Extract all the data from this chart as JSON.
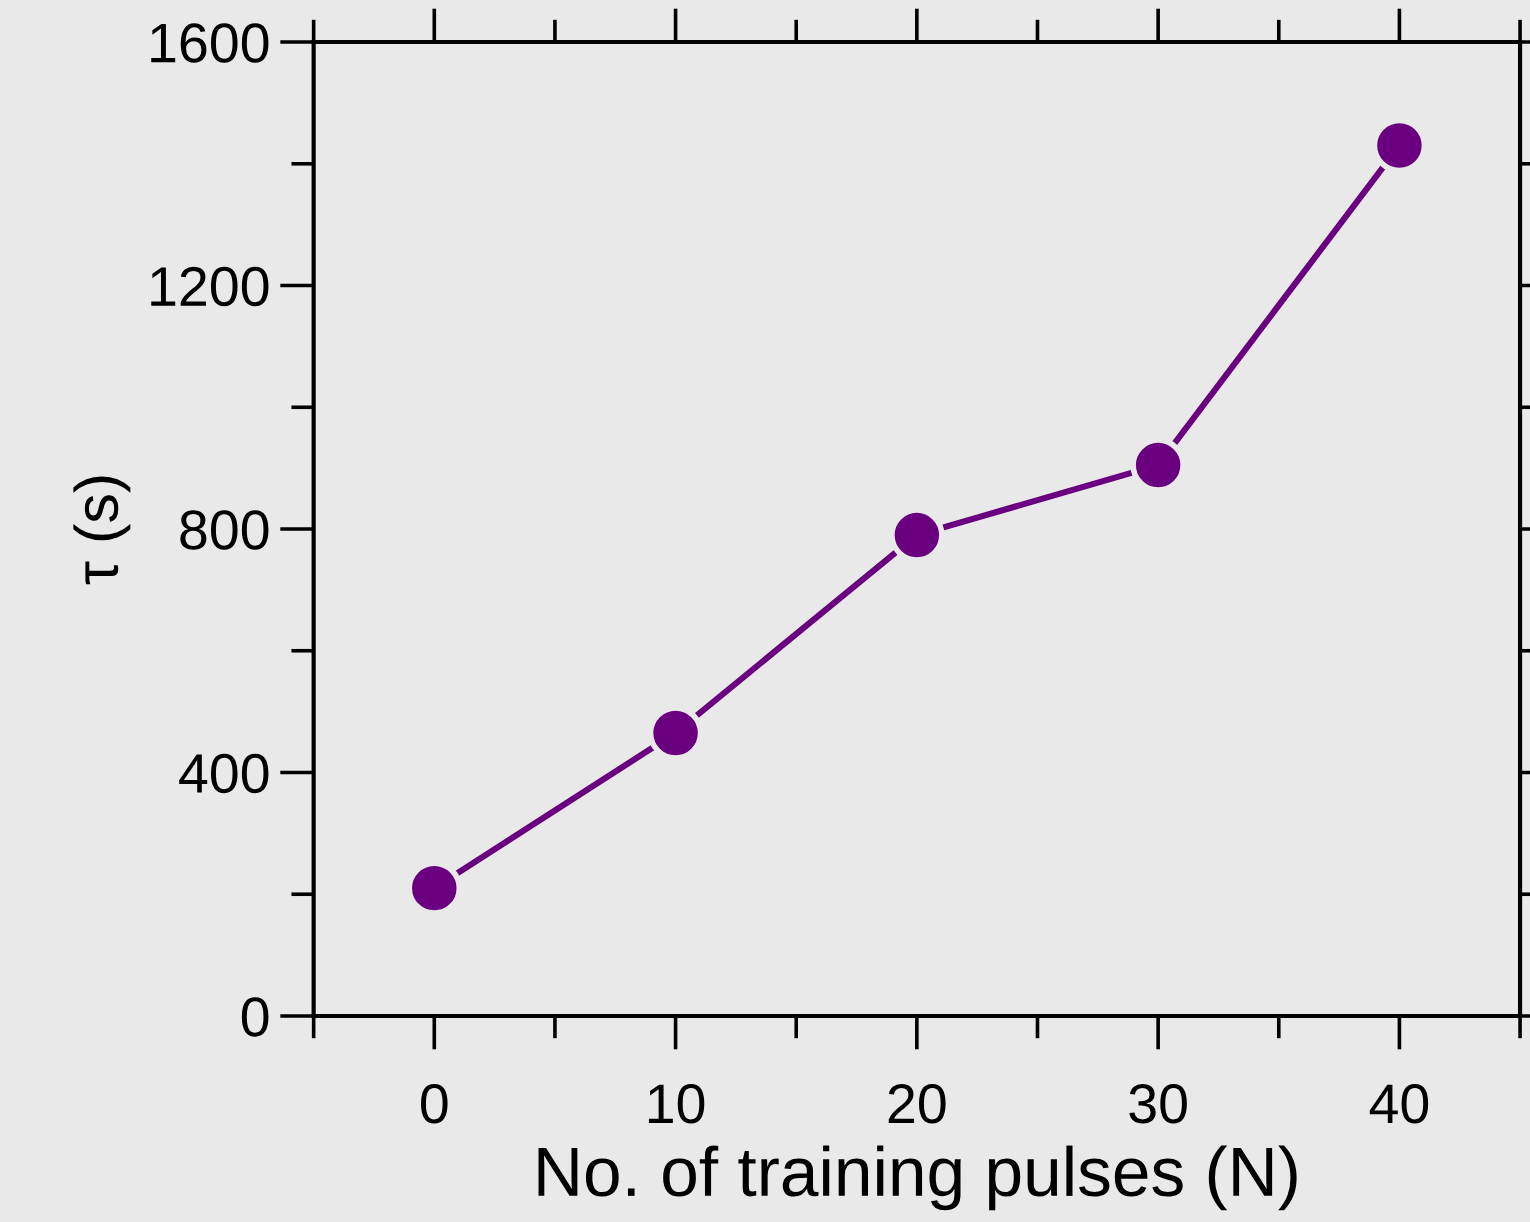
{
  "chart_data": {
    "type": "line",
    "xlabel": "No. of training pulses (N)",
    "ylabel": "τ (s)",
    "x": [
      0,
      10,
      20,
      30,
      40
    ],
    "series": [
      {
        "color": "#6a0080",
        "values": [
          210,
          465,
          790,
          905,
          1430
        ]
      }
    ],
    "xlim": [
      -5,
      45
    ],
    "xticks": [
      0,
      10,
      20,
      30,
      40
    ],
    "ylim": [
      0,
      1600
    ],
    "yticks": [
      0,
      400,
      800,
      1200,
      1600
    ],
    "marker": "circle",
    "line_style": "solid",
    "grid": false,
    "legend": false
  }
}
